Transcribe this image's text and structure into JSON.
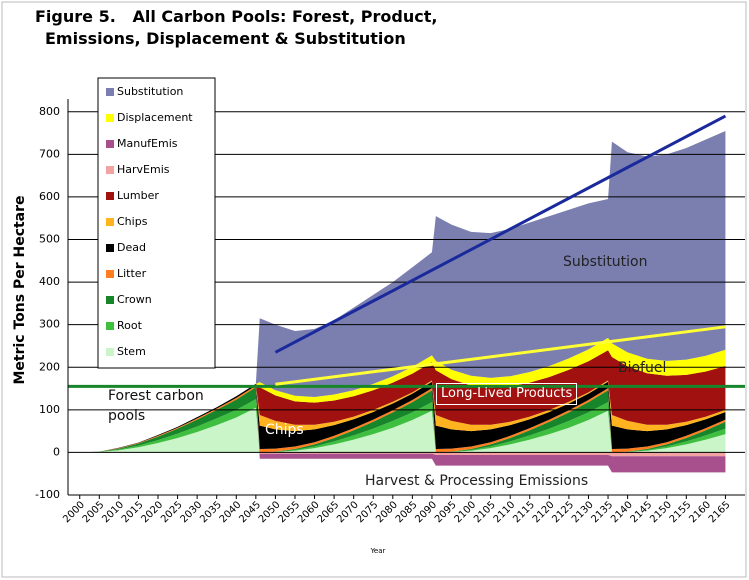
{
  "chart_data": {
    "type": "area",
    "stacked": true,
    "title": "Figure 5.   All Carbon Pools: Forest, Product, Emissions, Displacement & Substitution",
    "ylabel": "Metric Tons Per Hectare",
    "xlabel": "Year",
    "legend": "upper left",
    "grid": true,
    "xlim": [
      1997,
      2170
    ],
    "ylim": [
      -100,
      830
    ],
    "xticks": [
      2000,
      2005,
      2010,
      2015,
      2020,
      2025,
      2030,
      2035,
      2040,
      2045,
      2050,
      2055,
      2060,
      2065,
      2070,
      2075,
      2080,
      2085,
      2090,
      2095,
      2100,
      2105,
      2110,
      2115,
      2120,
      2125,
      2130,
      2135,
      2140,
      2145,
      2150,
      2155,
      2160,
      2165
    ],
    "yticks": [
      -100,
      0,
      100,
      200,
      300,
      400,
      500,
      600,
      700,
      800
    ],
    "x": [
      2000,
      2005,
      2010,
      2015,
      2020,
      2025,
      2030,
      2035,
      2040,
      2045,
      2046,
      2050,
      2055,
      2060,
      2065,
      2070,
      2075,
      2080,
      2085,
      2090,
      2091,
      2095,
      2100,
      2105,
      2110,
      2115,
      2120,
      2125,
      2130,
      2135,
      2136,
      2140,
      2145,
      2150,
      2155,
      2160,
      2165
    ],
    "series": [
      {
        "name": "Stem",
        "color": "#c9f5c9",
        "values": [
          0,
          1,
          5,
          12,
          22,
          34,
          48,
          64,
          82,
          105,
          0,
          1,
          4,
          10,
          19,
          30,
          43,
          58,
          76,
          98,
          0,
          1,
          4,
          10,
          19,
          30,
          43,
          58,
          76,
          98,
          0,
          1,
          4,
          10,
          19,
          30,
          43
        ]
      },
      {
        "name": "Root",
        "color": "#3fbf3f",
        "values": [
          0,
          0.5,
          2,
          4,
          7,
          10,
          13,
          16,
          18,
          20,
          0,
          0.5,
          2,
          4,
          7,
          10,
          13,
          16,
          18,
          20,
          0,
          0.5,
          2,
          4,
          7,
          10,
          13,
          16,
          18,
          20,
          0,
          0.5,
          2,
          4,
          7,
          10,
          13
        ]
      },
      {
        "name": "Crown",
        "color": "#17852a",
        "values": [
          0,
          0.5,
          2,
          5,
          8,
          12,
          16,
          20,
          24,
          28,
          0,
          0.5,
          2,
          5,
          8,
          12,
          16,
          20,
          24,
          28,
          0,
          0.5,
          2,
          5,
          8,
          12,
          16,
          20,
          24,
          28,
          0,
          0.5,
          2,
          5,
          8,
          12,
          16
        ]
      },
      {
        "name": "Litter",
        "color": "#ff7f1f",
        "values": [
          0,
          0,
          1,
          1,
          2,
          2,
          3,
          3,
          4,
          4,
          8,
          7,
          6,
          5,
          5,
          5,
          5,
          5,
          5,
          5,
          8,
          7,
          6,
          5,
          5,
          5,
          5,
          5,
          5,
          5,
          8,
          7,
          6,
          5,
          5,
          5,
          5
        ]
      },
      {
        "name": "Dead",
        "color": "#000000",
        "values": [
          0,
          0,
          1,
          1,
          2,
          2,
          3,
          3,
          4,
          4,
          55,
          45,
          36,
          30,
          25,
          21,
          18,
          16,
          15,
          15,
          55,
          45,
          36,
          30,
          25,
          21,
          18,
          16,
          15,
          15,
          55,
          45,
          36,
          30,
          25,
          21,
          18
        ]
      },
      {
        "name": "Chips",
        "color": "#ffb31f",
        "values": [
          0,
          0,
          0,
          0,
          0,
          0,
          0,
          0,
          0,
          0,
          25,
          20,
          15,
          11,
          8,
          6,
          5,
          4,
          3,
          3,
          25,
          20,
          15,
          11,
          8,
          6,
          5,
          4,
          3,
          3,
          25,
          20,
          15,
          11,
          8,
          6,
          5
        ]
      },
      {
        "name": "Lumber",
        "color": "#a0110f",
        "values": [
          0,
          0,
          0,
          0,
          0,
          0,
          0,
          0,
          0,
          0,
          65,
          60,
          55,
          52,
          50,
          48,
          46,
          45,
          44,
          43,
          105,
          98,
          92,
          87,
          83,
          80,
          77,
          75,
          73,
          71,
          136,
          128,
          121,
          115,
          110,
          106,
          103
        ]
      },
      {
        "name": "HarvEmis",
        "color": "#f4a3a3",
        "values": [
          0,
          0,
          0,
          0,
          0,
          0,
          0,
          0,
          0,
          0,
          -3,
          -3,
          -3,
          -3,
          -3,
          -3,
          -3,
          -3,
          -3,
          -3,
          -6,
          -6,
          -6,
          -6,
          -6,
          -6,
          -6,
          -6,
          -6,
          -6,
          -9,
          -9,
          -9,
          -9,
          -9,
          -9,
          -9
        ]
      },
      {
        "name": "ManufEmis",
        "color": "#a8508e",
        "values": [
          0,
          0,
          0,
          0,
          0,
          0,
          0,
          0,
          0,
          0,
          -12,
          -12,
          -12,
          -12,
          -12,
          -12,
          -12,
          -12,
          -12,
          -12,
          -25,
          -25,
          -25,
          -25,
          -25,
          -25,
          -25,
          -25,
          -25,
          -25,
          -38,
          -38,
          -38,
          -38,
          -38,
          -38,
          -38
        ]
      },
      {
        "name": "Displacement",
        "color": "#ffff00",
        "values": [
          0,
          0,
          0,
          0,
          0,
          0,
          0,
          0,
          0,
          0,
          12,
          12,
          13,
          13,
          14,
          14,
          15,
          15,
          16,
          16,
          22,
          22,
          23,
          23,
          24,
          25,
          26,
          27,
          28,
          29,
          32,
          33,
          34,
          35,
          36,
          37,
          38
        ]
      },
      {
        "name": "Substitution",
        "color": "#7b7fb0",
        "values": [
          0,
          0,
          0,
          0,
          0,
          0,
          0,
          0,
          0,
          0,
          150,
          154,
          152,
          160,
          174,
          194,
          209,
          221,
          234,
          242,
          340,
          341,
          338,
          340,
          346,
          351,
          352,
          349,
          343,
          326,
          474,
          470,
          475,
          485,
          497,
          508,
          514
        ]
      }
    ],
    "lines": [
      {
        "color": "#17852a",
        "x": [
          1997,
          2170
        ],
        "values": [
          155,
          155
        ]
      },
      {
        "color": "#ffff33",
        "x": [
          2050,
          2165
        ],
        "values": [
          160,
          295
        ]
      },
      {
        "color": "#1a2a9c",
        "x": [
          2050,
          2165
        ],
        "values": [
          235,
          790
        ]
      }
    ],
    "annotations": [
      "Forest carbon pools",
      "Chips",
      "Long-Lived Products",
      "Biofuel",
      "Substitution",
      "Harvest & Processing Emissions"
    ]
  }
}
